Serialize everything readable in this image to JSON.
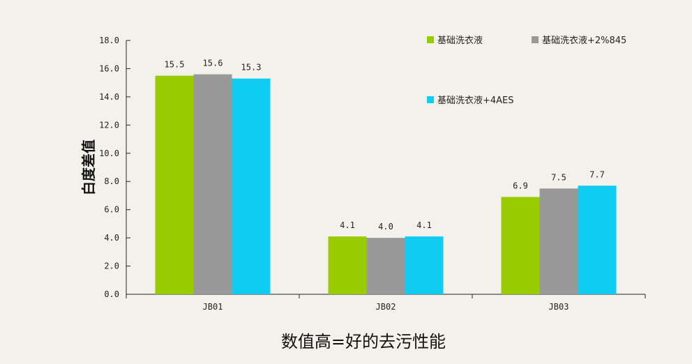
{
  "chart_data": {
    "type": "bar",
    "title": "",
    "xlabel": "数值高=好的去污性能",
    "ylabel": "白度差值",
    "ylim": [
      0,
      18
    ],
    "yticks": [
      "0.0",
      "2.0",
      "4.0",
      "6.0",
      "8.0",
      "10.0",
      "12.0",
      "14.0",
      "16.0",
      "18.0"
    ],
    "categories": [
      "JB01",
      "JB02",
      "JB03"
    ],
    "series": [
      {
        "name": "基础洗衣液",
        "values": [
          15.5,
          4.1,
          6.9
        ],
        "labels": [
          "15.5",
          "4.1",
          "6.9"
        ],
        "color": "#99cc00"
      },
      {
        "name": "基础洗衣液+2%845",
        "values": [
          15.6,
          4.0,
          7.5
        ],
        "labels": [
          "15.6",
          "4.0",
          "7.5"
        ],
        "color": "#999999"
      },
      {
        "name": "基础洗衣液+4AES",
        "values": [
          15.3,
          4.1,
          7.7
        ],
        "labels": [
          "15.3",
          "4.1",
          "7.7"
        ],
        "color": "#11ccf2"
      }
    ],
    "grid": false,
    "legend_position": "top-right"
  }
}
